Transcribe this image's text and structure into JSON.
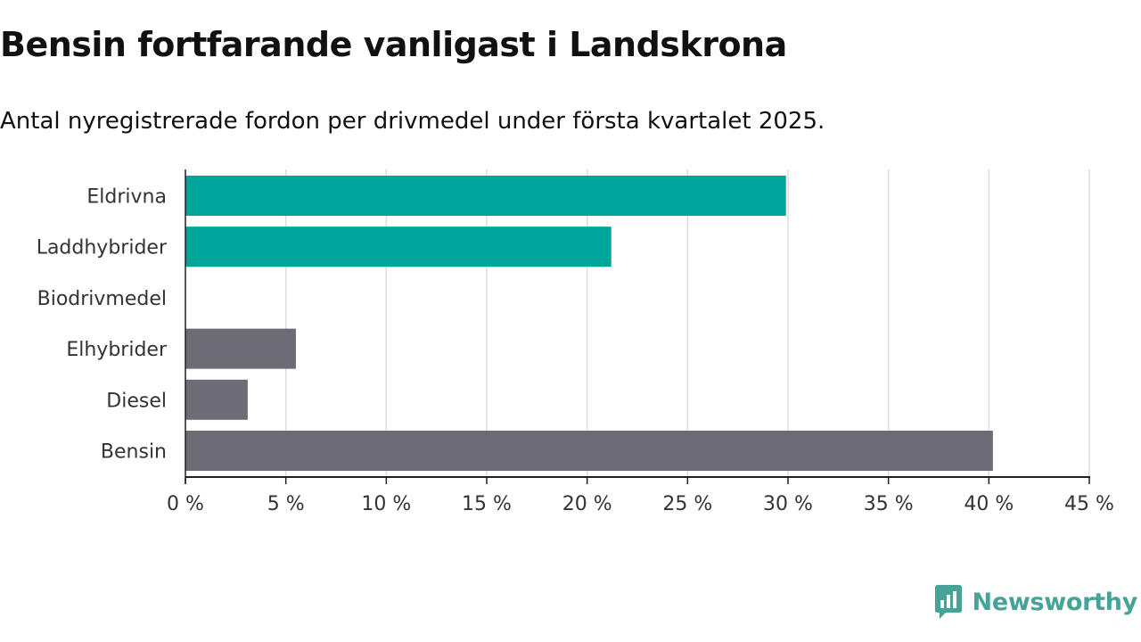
{
  "header": {
    "title": "Bensin fortfarande vanligast i Landskrona",
    "subtitle": "Antal nyregistrerade fordon per drivmedel under första kvartalet 2025."
  },
  "brand": {
    "name": "Newsworthy",
    "logo_icon": "newsworthy-logo-icon",
    "color": "#47a398"
  },
  "colors": {
    "highlight": "#00a59a",
    "neutral": "#6d6c74",
    "grid": "#dddddd",
    "axis": "#222222"
  },
  "chart_data": {
    "type": "bar",
    "orientation": "horizontal",
    "categories": [
      "Eldrivna",
      "Laddhybrider",
      "Biodrivmedel",
      "Elhybrider",
      "Diesel",
      "Bensin"
    ],
    "values": [
      29.9,
      21.2,
      0,
      5.5,
      3.1,
      40.2
    ],
    "highlighted": [
      true,
      true,
      true,
      false,
      false,
      false
    ],
    "xlim": [
      0,
      45
    ],
    "xticks": [
      0,
      5,
      10,
      15,
      20,
      25,
      30,
      35,
      40,
      45
    ],
    "tick_suffix": " %",
    "grid": "vertical",
    "title": "Bensin fortfarande vanligast i Landskrona",
    "subtitle": "Antal nyregistrerade fordon per drivmedel under första kvartalet 2025."
  }
}
